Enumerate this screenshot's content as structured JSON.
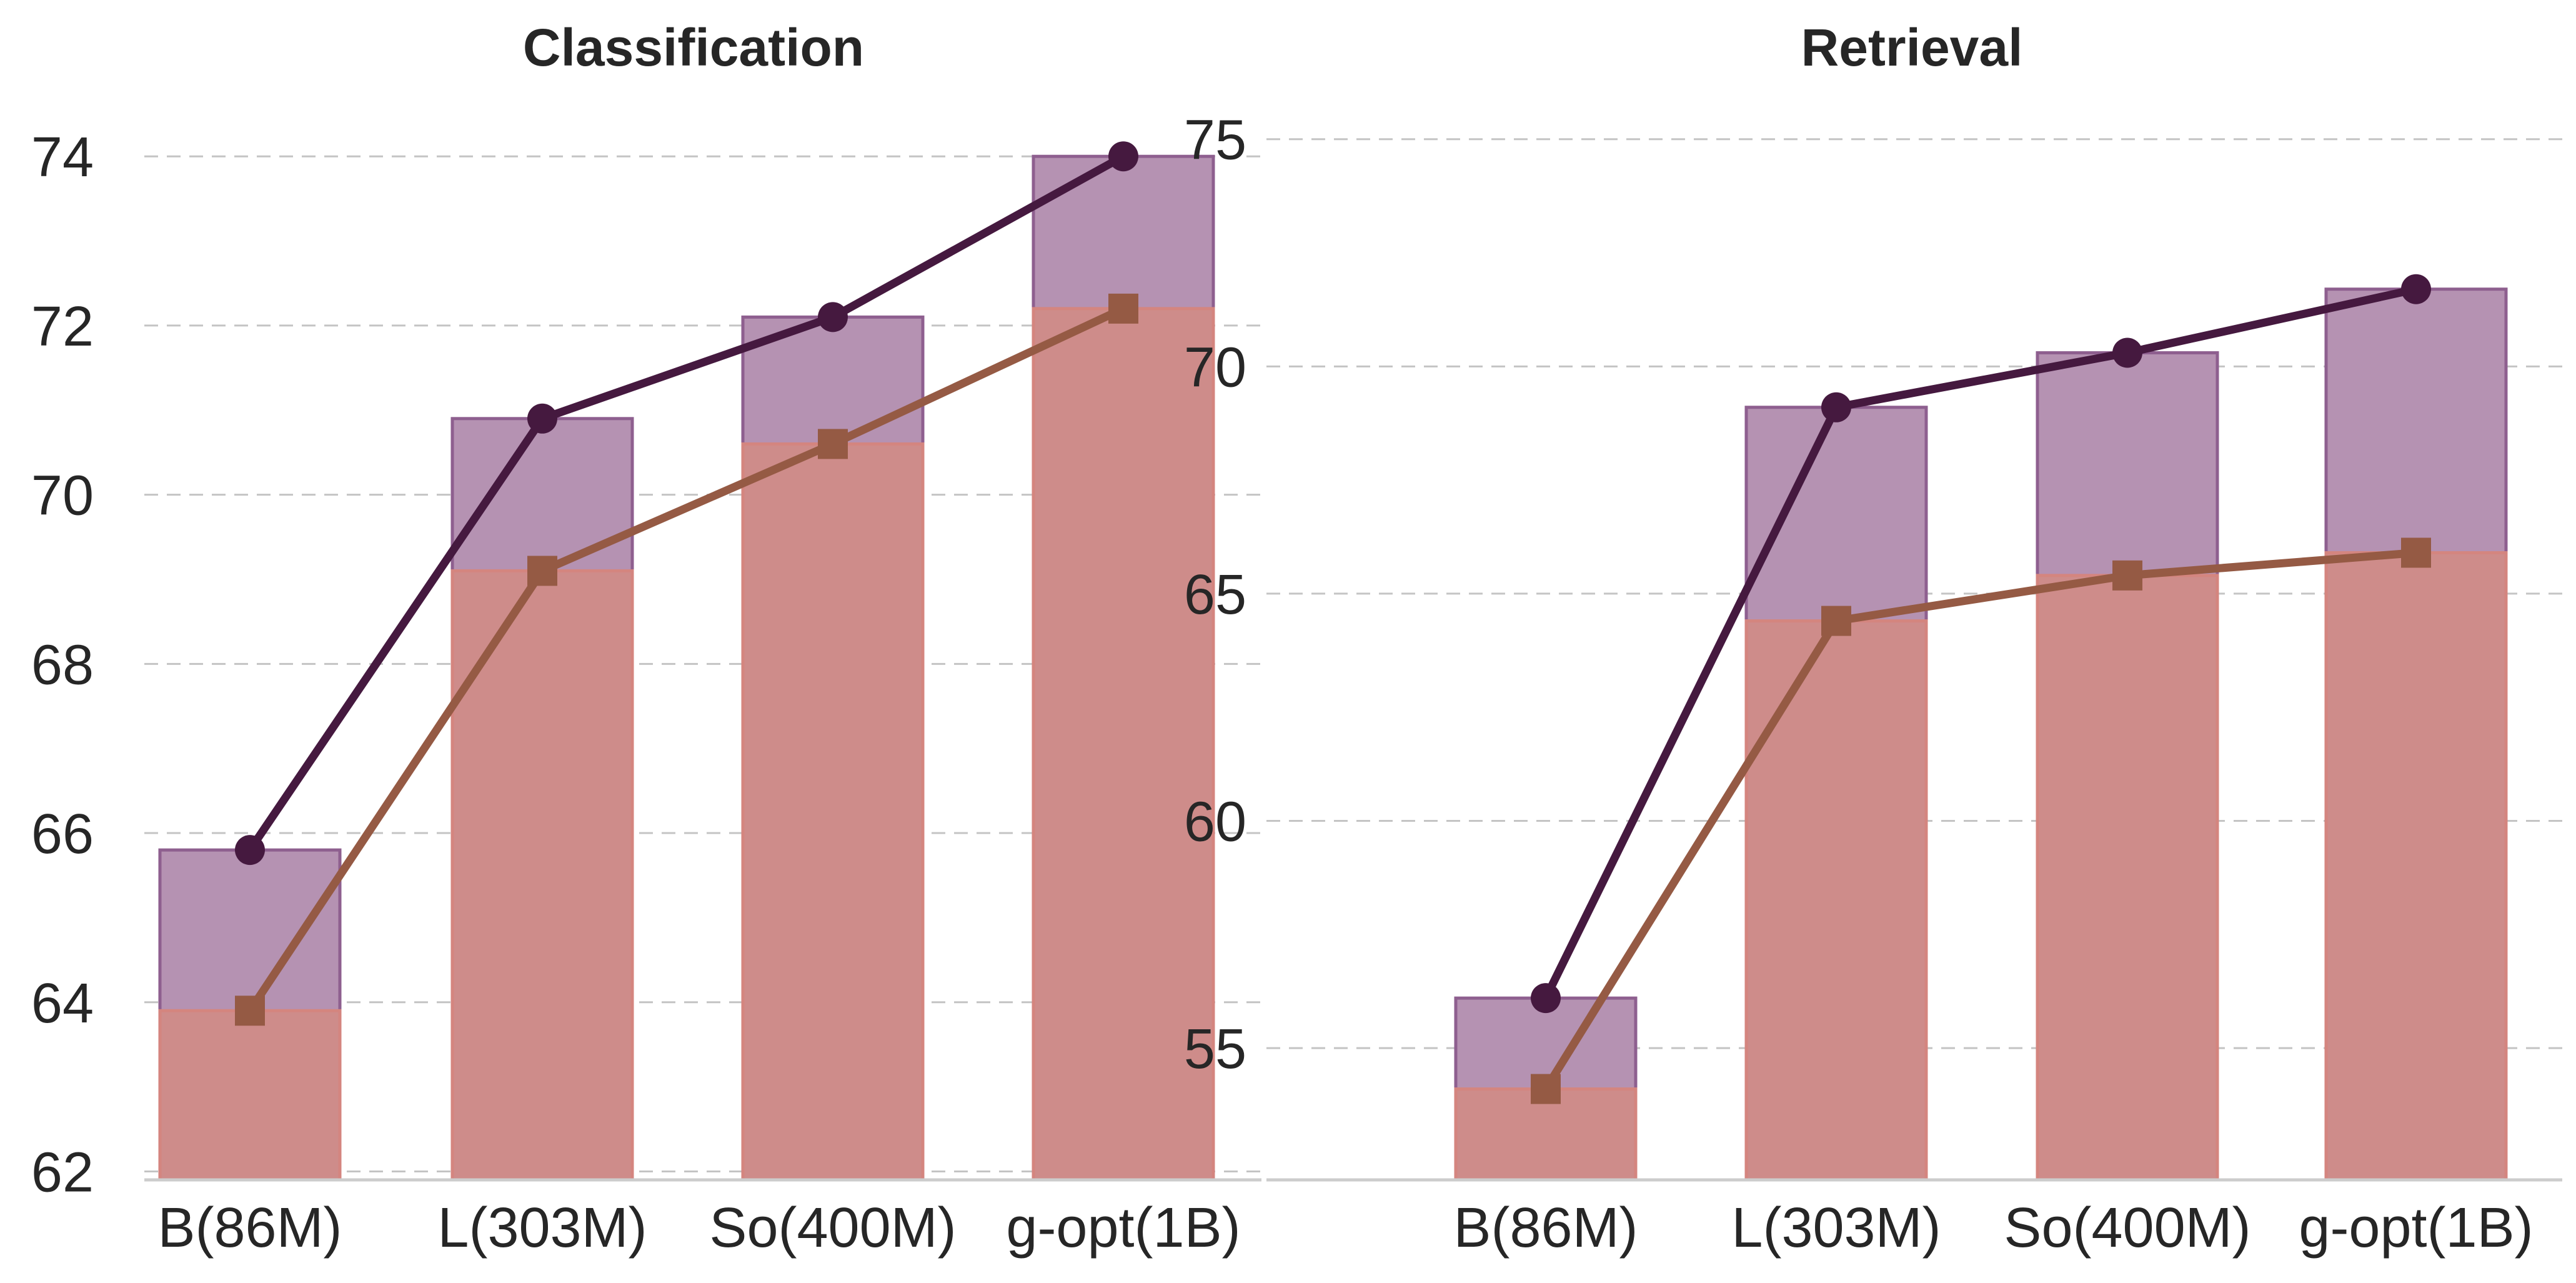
{
  "chart_data": [
    {
      "type": "bar",
      "title": "Classification",
      "categories": [
        "B(86M)",
        "L(303M)",
        "So(400M)",
        "g-opt(1B)"
      ],
      "yticks": [
        62,
        64,
        66,
        68,
        70,
        72,
        74
      ],
      "ylim": [
        61.9,
        74.6
      ],
      "grid": true,
      "series": [
        {
          "kind": "bar+line",
          "marker": "circle",
          "values": [
            65.8,
            70.9,
            72.1,
            74.0
          ],
          "bar_color": "#b592b2",
          "bar_edge": "#8e5f8f",
          "line_color": "#45193f"
        },
        {
          "kind": "bar+line",
          "marker": "square",
          "values": [
            63.9,
            69.1,
            70.6,
            72.2
          ],
          "bar_color": "#ce8c8a",
          "bar_edge": "#d4857f",
          "line_color": "#955a44"
        }
      ]
    },
    {
      "type": "bar",
      "title": "Retrieval",
      "categories": [
        "B(86M)",
        "L(303M)",
        "So(400M)",
        "g-opt(1B)"
      ],
      "yticks": [
        55,
        60,
        65,
        70,
        75
      ],
      "ylim": [
        52.1,
        76.0
      ],
      "grid": true,
      "series": [
        {
          "kind": "bar+line",
          "marker": "circle",
          "values": [
            56.1,
            69.1,
            70.3,
            71.7
          ],
          "bar_color": "#b592b2",
          "bar_edge": "#8e5f8f",
          "line_color": "#45193f"
        },
        {
          "kind": "bar+line",
          "marker": "square",
          "values": [
            54.1,
            64.4,
            65.4,
            65.9
          ],
          "bar_color": "#ce8c8a",
          "bar_edge": "#d4857f",
          "line_color": "#955a44"
        }
      ]
    }
  ]
}
